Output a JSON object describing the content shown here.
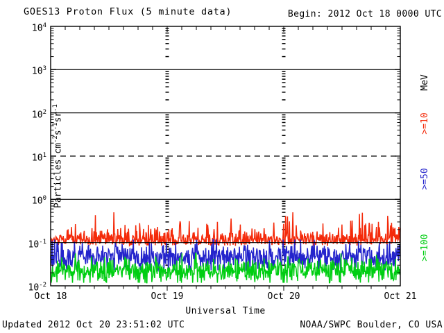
{
  "header": {
    "title": "GOES13 Proton Flux (5 minute data)",
    "begin_label": "Begin: 2012 Oct 18 0000 UTC"
  },
  "footer": {
    "updated": "Updated 2012 Oct 20 23:51:02 UTC",
    "source": "NOAA/SWPC Boulder, CO USA"
  },
  "axes": {
    "x_title": "Universal Time",
    "y_title_parts": [
      [
        "t",
        "Particles cm"
      ],
      [
        "s",
        "-2"
      ],
      [
        "t",
        "s"
      ],
      [
        "s",
        "-1"
      ],
      [
        "t",
        "sr"
      ],
      [
        "s",
        "-1"
      ]
    ],
    "y_decades": [
      4,
      3,
      2,
      1,
      0,
      -1,
      -2
    ]
  },
  "right_labels": {
    "units": "MeV",
    "items": [
      {
        "label": ">=10",
        "color": "#f42a0a"
      },
      {
        "label": ">=50",
        "color": "#2424cc"
      },
      {
        "label": ">=100",
        "color": "#00ce12"
      }
    ]
  },
  "chart_data": {
    "type": "line",
    "title": "GOES13 Proton Flux (5 minute data)",
    "cadence": "5 minute",
    "x": {
      "label": "Universal Time",
      "start": "2012 Oct 18 0000 UTC",
      "end": "2012 Oct 21 0000 UTC",
      "tick_labels": [
        "Oct 18",
        "Oct 19",
        "Oct 20",
        "Oct 21"
      ],
      "minor_tick_hours": 3,
      "day_gridlines": [
        "Oct 19",
        "Oct 20"
      ]
    },
    "y": {
      "label": "Particles cm-2 s-1 sr-1",
      "scale": "log10",
      "range": [
        0.01,
        10000
      ],
      "decade_exponents": [
        4,
        3,
        2,
        1,
        0,
        -1,
        -2
      ],
      "solid_gridline_exponents": [
        3,
        2,
        0,
        -1
      ],
      "dashed_gridline_exponents": [
        1
      ]
    },
    "series": [
      {
        "name": ">=10 MeV",
        "color": "#f42a0a",
        "median_flux": 0.11,
        "observed_min": 0.075,
        "observed_max": 0.5,
        "behavior": "noisy band hugging 1e-1, upward spikes growing late Oct 20",
        "sim": {
          "seed": 11,
          "n": 720,
          "mode": "half",
          "base": -1.055,
          "sigma": 0.16,
          "jitter": 0.03,
          "clampMin": -1.12,
          "clampMax": -0.3,
          "spikeProb": 0.03,
          "spikeMag": 0.42,
          "rampFrom": 0.62,
          "rampGain": 2.4
        }
      },
      {
        "name": ">=50 MeV",
        "color": "#2424cc",
        "median_flux": 0.047,
        "observed_min": 0.023,
        "observed_max": 0.12,
        "behavior": "noisy band between ~2e-2 and ~1e-1",
        "sim": {
          "seed": 22,
          "n": 720,
          "mode": "norm",
          "base": -1.33,
          "sigma": 0.165,
          "jitter": 0,
          "clampMin": -1.64,
          "clampMax": -0.93,
          "spikeProb": 0.012,
          "spikeMag": 0.22,
          "rampFrom": 1.1,
          "rampGain": 1
        }
      },
      {
        "name": ">=100 MeV",
        "color": "#00ce12",
        "median_flux": 0.022,
        "observed_min": 0.012,
        "observed_max": 0.055,
        "behavior": "noisy band between ~1e-2 and ~5e-2",
        "sim": {
          "seed": 33,
          "n": 720,
          "mode": "norm",
          "base": -1.665,
          "sigma": 0.15,
          "jitter": 0,
          "clampMin": -1.93,
          "clampMax": -1.25,
          "spikeProb": 0.01,
          "spikeMag": 0.25,
          "rampFrom": 1.1,
          "rampGain": 1
        }
      }
    ]
  }
}
